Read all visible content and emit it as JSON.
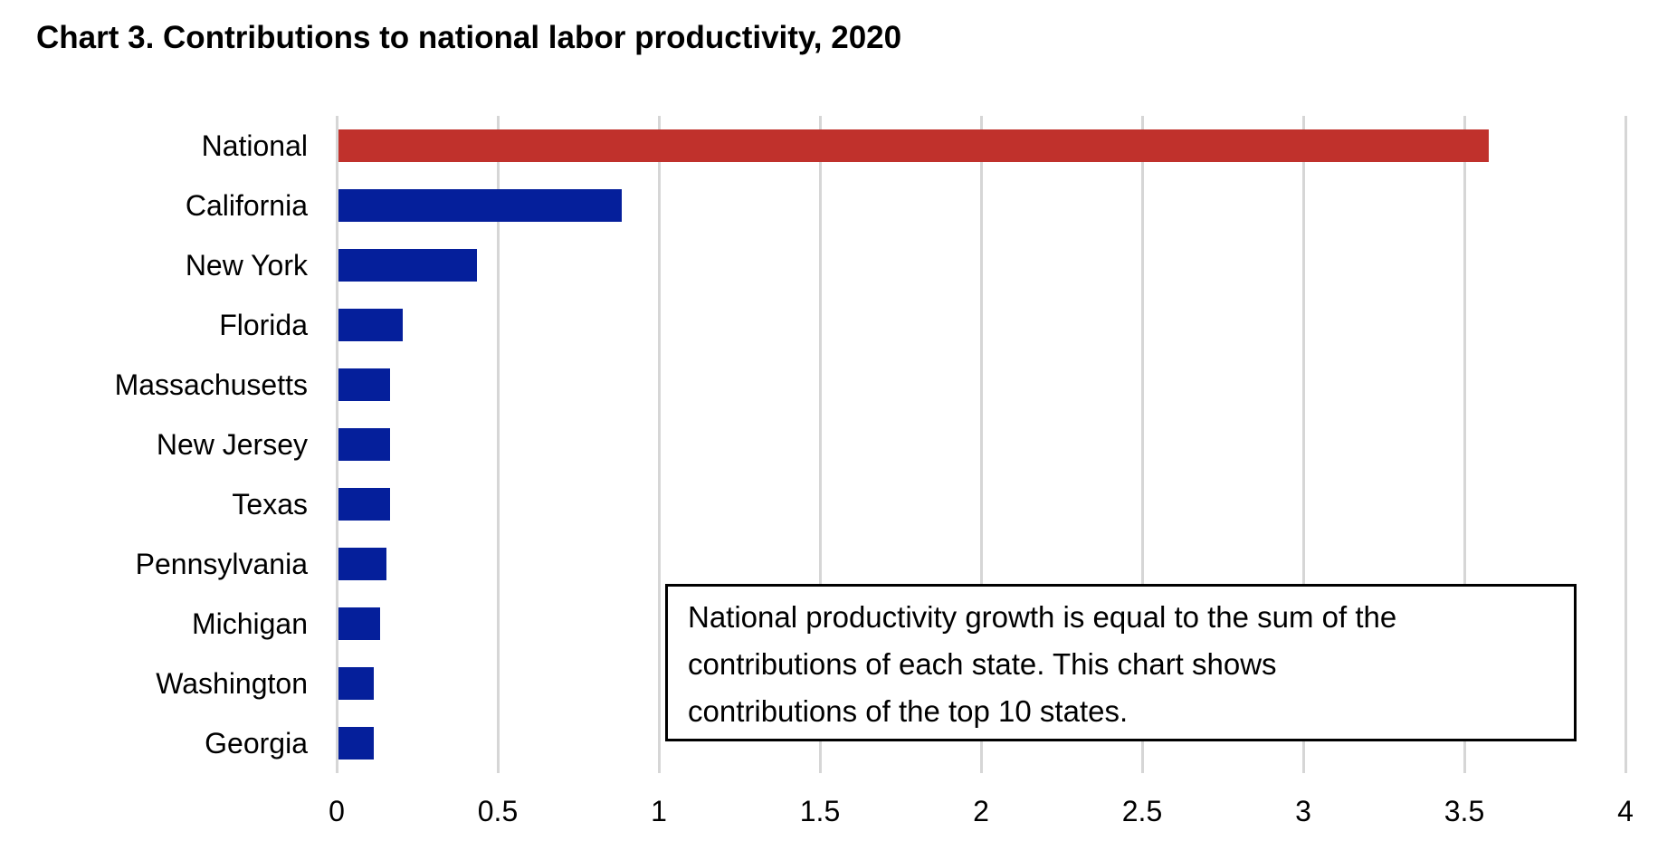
{
  "title": {
    "text": "Chart 3. Contributions to national labor productivity, 2020"
  },
  "annotation": {
    "lines": [
      "National productivity growth is equal to the sum of the",
      "contributions of each state. This chart shows",
      "contributions of the top 10 states."
    ]
  },
  "colors": {
    "national_bar": "#C0312C",
    "state_bar": "#051F9B",
    "gridline": "#D6D6D6",
    "text": "#000000",
    "annotation_border": "#000000",
    "background": "#FFFFFF"
  },
  "chart_data": {
    "type": "bar",
    "orientation": "horizontal",
    "title": "Chart 3. Contributions to national labor productivity, 2020",
    "categories": [
      "National",
      "California",
      "New York",
      "Florida",
      "Massachusetts",
      "New Jersey",
      "Texas",
      "Pennsylvania",
      "Michigan",
      "Washington",
      "Georgia"
    ],
    "values": [
      3.57,
      0.88,
      0.43,
      0.2,
      0.16,
      0.16,
      0.16,
      0.15,
      0.13,
      0.11,
      0.11
    ],
    "highlight_category": "National",
    "xlim": [
      0,
      4
    ],
    "x_ticks": [
      0,
      0.5,
      1,
      1.5,
      2,
      2.5,
      3,
      3.5,
      4
    ],
    "x_tick_labels": [
      "0",
      "0.5",
      "1",
      "1.5",
      "2",
      "2.5",
      "3",
      "3.5",
      "4"
    ],
    "ylabel": "",
    "xlabel": "",
    "grid": "vertical-only",
    "legend": "none",
    "annotation": "National productivity growth is equal to the sum of the contributions of each state. This chart shows contributions of the top 10 states."
  }
}
